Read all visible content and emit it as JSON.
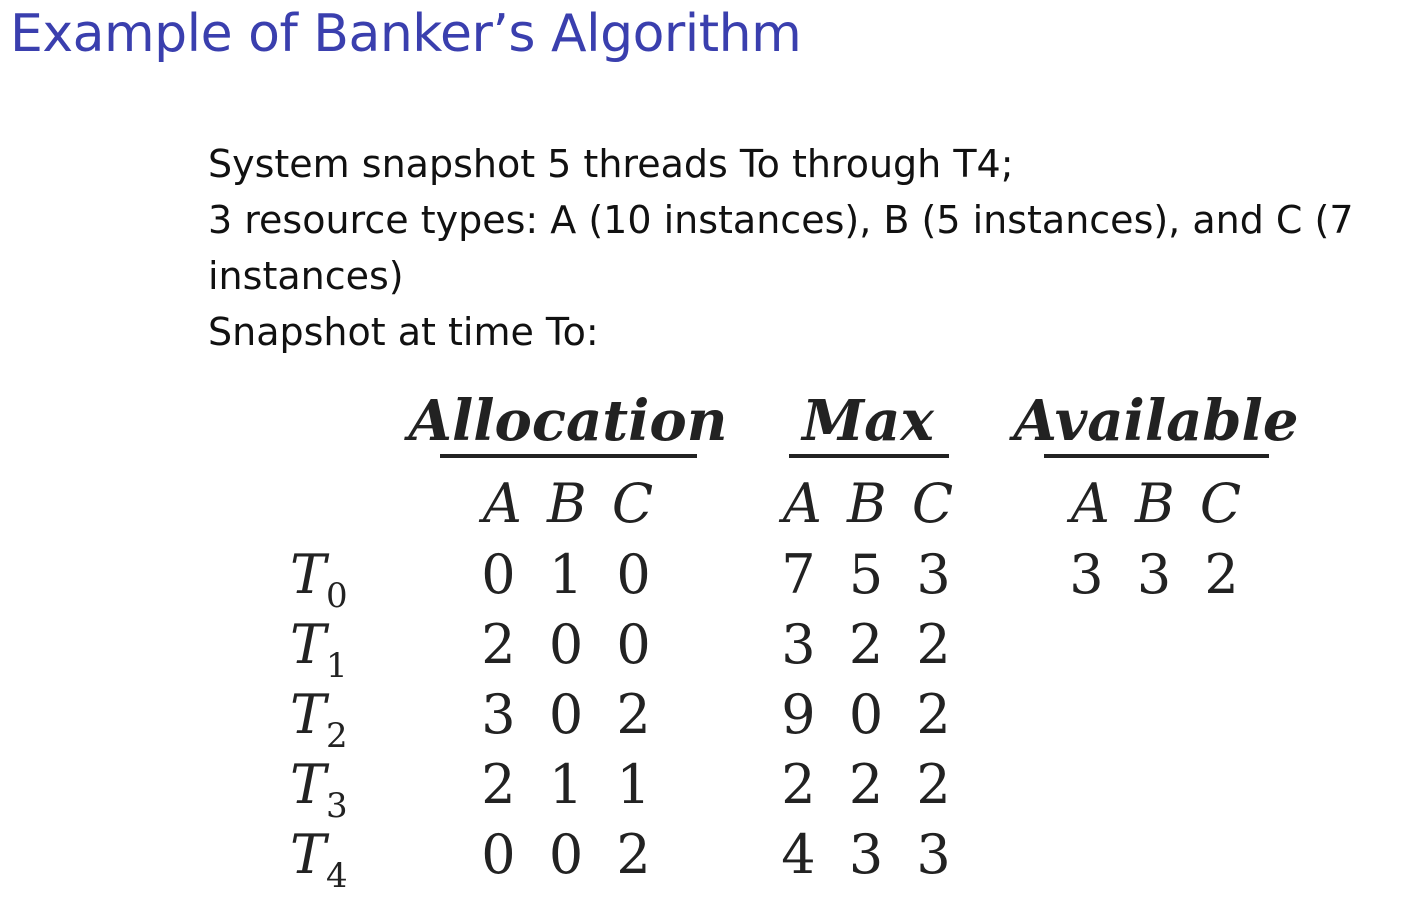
{
  "slide": {
    "title": "Example of Banker’s Algorithm",
    "lines": [
      "System snapshot 5 threads To through T4;",
      "3 resource types: A (10 instances), B (5 instances), and C (7",
      "instances)",
      "Snapshot at time To:"
    ]
  },
  "table": {
    "headers": {
      "allocation": "Allocation",
      "max": "Max",
      "available": "Available"
    },
    "subheader": "A B C",
    "threads": [
      {
        "name": "T",
        "sub": "0",
        "allocation": "0 1 0",
        "max": "7 5 3"
      },
      {
        "name": "T",
        "sub": "1",
        "allocation": "2 0 0",
        "max": "3 2 2"
      },
      {
        "name": "T",
        "sub": "2",
        "allocation": "3 0 2",
        "max": "9 0 2"
      },
      {
        "name": "T",
        "sub": "3",
        "allocation": "2 1 1",
        "max": "2 2 2"
      },
      {
        "name": "T",
        "sub": "4",
        "allocation": "0 0 2",
        "max": "4 3 3"
      }
    ],
    "available": "3 3 2"
  }
}
